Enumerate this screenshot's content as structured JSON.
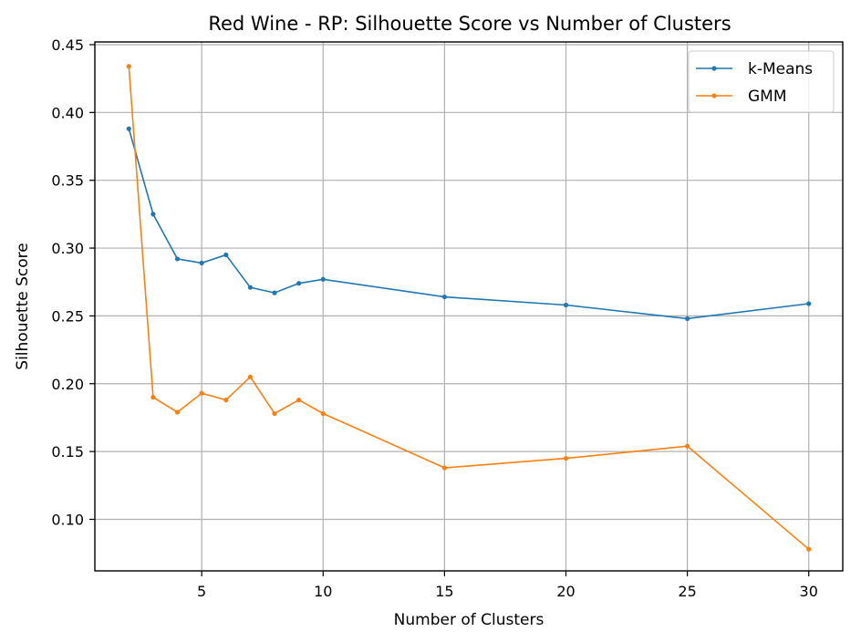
{
  "chart_data": {
    "type": "line",
    "title": "Red Wine - RP: Silhouette Score vs Number of Clusters",
    "xlabel": "Number of Clusters",
    "ylabel": "Silhouette Score",
    "xlim": [
      0.6,
      31.4
    ],
    "ylim": [
      0.062,
      0.452
    ],
    "xticks": [
      5,
      10,
      15,
      20,
      25,
      30
    ],
    "xtick_labels": [
      "5",
      "10",
      "15",
      "20",
      "25",
      "30"
    ],
    "yticks": [
      0.1,
      0.15,
      0.2,
      0.25,
      0.3,
      0.35,
      0.4,
      0.45
    ],
    "ytick_labels": [
      "0.10",
      "0.15",
      "0.20",
      "0.25",
      "0.30",
      "0.35",
      "0.40",
      "0.45"
    ],
    "grid": true,
    "legend_position": "top-right",
    "x": [
      2,
      3,
      4,
      5,
      6,
      7,
      8,
      9,
      10,
      15,
      20,
      25,
      30
    ],
    "series": [
      {
        "name": "k-Means",
        "color": "#1f77b4",
        "marker": "dot",
        "values": [
          0.388,
          0.325,
          0.292,
          0.289,
          0.295,
          0.271,
          0.267,
          0.274,
          0.277,
          0.264,
          0.258,
          0.248,
          0.259
        ]
      },
      {
        "name": "GMM",
        "color": "#ff7f0e",
        "marker": "dot",
        "values": [
          0.434,
          0.19,
          0.179,
          0.193,
          0.188,
          0.205,
          0.178,
          0.188,
          0.178,
          0.138,
          0.145,
          0.154,
          0.078
        ]
      }
    ]
  }
}
